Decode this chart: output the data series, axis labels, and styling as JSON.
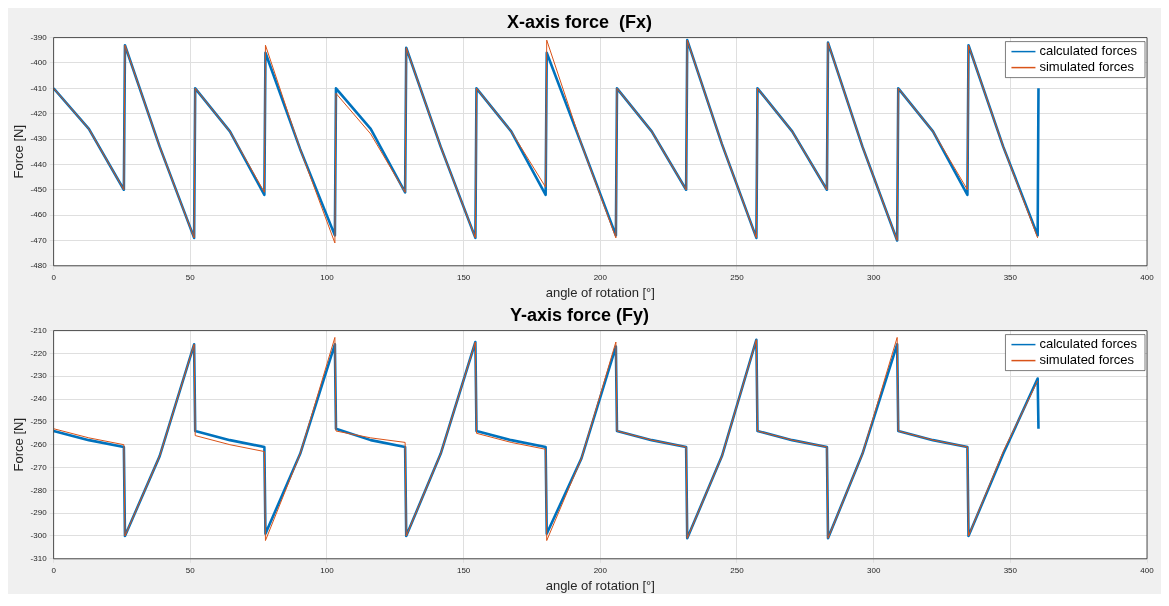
{
  "chart_data": [
    {
      "type": "line",
      "title": "X-axis force  (Fx)",
      "xlabel": "angle of rotation [°]",
      "ylabel": "Force [N]",
      "x": [
        0,
        12.9,
        25.7,
        26.1,
        38.8,
        51.4,
        51.8,
        64.5,
        77.1,
        77.5,
        90.2,
        102.9,
        103.3,
        116,
        128.6,
        129,
        141.6,
        154.3,
        154.7,
        167.4,
        180,
        180.4,
        193.1,
        205.7,
        206.1,
        218.8,
        231.4,
        231.8,
        244.5,
        257.1,
        257.5,
        270.2,
        282.9,
        283.3,
        295.9,
        308.6,
        309,
        321.7,
        334.3,
        334.7,
        347.4,
        360,
        360.3
      ],
      "series": [
        {
          "name": "calculated forces",
          "color": "#0072bd",
          "values": [
            -410,
            -426,
            -450,
            -393,
            -433,
            -469,
            -410,
            -427,
            -452,
            -396,
            -434,
            -468,
            -410,
            -426,
            -451,
            -394,
            -433,
            -469,
            -410,
            -427,
            -452,
            -396,
            -432,
            -468,
            -410,
            -427,
            -450,
            -391,
            -432,
            -469,
            -410,
            -427,
            -450,
            -392,
            -433,
            -470,
            -410,
            -427,
            -452,
            -393,
            -433,
            -468,
            -410
          ]
        },
        {
          "name": "simulated forces",
          "color": "#d95319",
          "values": [
            -410,
            -426,
            -450,
            -393,
            -433,
            -469,
            -410,
            -427,
            -451,
            -393,
            -434,
            -471,
            -412,
            -428,
            -451,
            -394,
            -433,
            -469,
            -410,
            -427,
            -449,
            -391,
            -432,
            -469,
            -410,
            -427,
            -450,
            -391,
            -432,
            -469,
            -410,
            -427,
            -450,
            -392,
            -433,
            -470,
            -410,
            -427,
            -450,
            -393,
            -433,
            -469,
            null
          ]
        }
      ],
      "xlim": [
        0,
        400
      ],
      "xticks": [
        0,
        50,
        100,
        150,
        200,
        250,
        300,
        350,
        400
      ],
      "ylim": [
        -480,
        -390
      ],
      "yticks": [
        -480,
        -470,
        -460,
        -450,
        -440,
        -430,
        -420,
        -410,
        -400,
        -390
      ],
      "grid": true,
      "legend": "top right"
    },
    {
      "type": "line",
      "title": "Y-axis force (Fy)",
      "xlabel": "angle of rotation [°]",
      "ylabel": "Force [N]",
      "x": [
        0,
        12.9,
        25.7,
        26.1,
        38.8,
        51.4,
        51.8,
        64.5,
        77.1,
        77.5,
        90.2,
        102.9,
        103.3,
        116,
        128.6,
        129,
        141.6,
        154.3,
        154.7,
        167.4,
        180,
        180.4,
        193.1,
        205.7,
        206.1,
        218.8,
        231.4,
        231.8,
        244.5,
        257.1,
        257.5,
        270.2,
        282.9,
        283.3,
        295.9,
        308.6,
        309,
        321.7,
        334.3,
        334.7,
        347.4,
        360,
        360.3
      ],
      "series": [
        {
          "name": "calculated forces",
          "color": "#0072bd",
          "values": [
            -254,
            -258,
            -261,
            -300,
            -265,
            -216,
            -254,
            -258,
            -261,
            -299,
            -264,
            -216,
            -253,
            -258,
            -261,
            -300,
            -264,
            -215,
            -254,
            -258,
            -261,
            -299,
            -266,
            -217,
            -254,
            -258,
            -261,
            -301,
            -265,
            -214,
            -254,
            -258,
            -261,
            -301,
            -264,
            -216,
            -254,
            -258,
            -261,
            -300,
            -264,
            -231,
            -253
          ]
        },
        {
          "name": "simulated forces",
          "color": "#d95319",
          "values": [
            -253,
            -257,
            -260,
            -300,
            -265,
            -216,
            -256,
            -260,
            -263,
            -302,
            -264,
            -213,
            -254,
            -257,
            -259,
            -300,
            -264,
            -215,
            -255,
            -259,
            -262,
            -302,
            -266,
            -215,
            -254,
            -258,
            -261,
            -301,
            -265,
            -214,
            -254,
            -258,
            -261,
            -301,
            -264,
            -213,
            -254,
            -258,
            -261,
            -300,
            -263,
            -232,
            null
          ]
        }
      ],
      "xlim": [
        0,
        400
      ],
      "xticks": [
        0,
        50,
        100,
        150,
        200,
        250,
        300,
        350,
        400
      ],
      "ylim": [
        -310,
        -210
      ],
      "yticks": [
        -310,
        -300,
        -290,
        -280,
        -270,
        -260,
        -250,
        -240,
        -230,
        -220,
        -210
      ],
      "grid": true,
      "legend": "top right"
    }
  ]
}
